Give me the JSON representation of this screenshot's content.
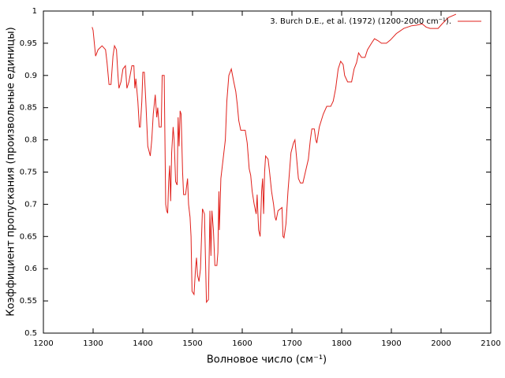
{
  "chart_data": {
    "type": "line",
    "xlabel": "Волновое число (см⁻¹)",
    "ylabel": "Коэффициент пропускания (произвольные единицы)",
    "xlim": [
      1200,
      2100
    ],
    "xticks": [
      1200,
      1300,
      1400,
      1500,
      1600,
      1700,
      1800,
      1900,
      2000,
      2100
    ],
    "ylim": [
      0.5,
      1
    ],
    "yticks": [
      0.5,
      0.55,
      0.6,
      0.65,
      0.7,
      0.75,
      0.8,
      0.85,
      0.9,
      0.95,
      1
    ],
    "grid": false,
    "legend": "top-right",
    "series": [
      {
        "name": "3. Burch D.E., et al. (1972)  (1200-2000 cm⁻¹).",
        "color": "#e0201b",
        "x": [
          1298,
          1300,
          1305,
          1310,
          1318,
          1325,
          1328,
          1332,
          1336,
          1340,
          1343,
          1347,
          1350,
          1352,
          1356,
          1360,
          1365,
          1368,
          1372,
          1378,
          1382,
          1384,
          1386,
          1390,
          1393,
          1395,
          1398,
          1400,
          1403,
          1406,
          1410,
          1415,
          1418,
          1421,
          1425,
          1428,
          1430,
          1433,
          1437,
          1439,
          1443,
          1446,
          1448,
          1450,
          1452,
          1454,
          1456,
          1458,
          1461,
          1463,
          1466,
          1469,
          1471,
          1473,
          1475,
          1477,
          1480,
          1482,
          1486,
          1490,
          1492,
          1495,
          1497,
          1499,
          1503,
          1506,
          1508,
          1510,
          1513,
          1516,
          1520,
          1524,
          1528,
          1532,
          1535,
          1537,
          1539,
          1542,
          1545,
          1549,
          1551,
          1553,
          1554,
          1557,
          1563,
          1566,
          1569,
          1573,
          1578,
          1583,
          1587,
          1590,
          1593,
          1597,
          1606,
          1610,
          1614,
          1617,
          1620,
          1624,
          1628,
          1630,
          1631,
          1633,
          1636,
          1639,
          1641,
          1643,
          1645,
          1647,
          1652,
          1655,
          1659,
          1663,
          1666,
          1668,
          1672,
          1680,
          1682,
          1684,
          1688,
          1692,
          1695,
          1698,
          1703,
          1706,
          1709,
          1713,
          1717,
          1722,
          1727,
          1733,
          1737,
          1740,
          1745,
          1748,
          1750,
          1755,
          1763,
          1770,
          1778,
          1783,
          1788,
          1793,
          1798,
          1803,
          1806,
          1812,
          1820,
          1825,
          1830,
          1834,
          1840,
          1847,
          1852,
          1860,
          1866,
          1873,
          1880,
          1890,
          1898,
          1910,
          1925,
          1940,
          1950,
          1962,
          1970,
          1978,
          1994,
          2002,
          2015,
          2030
        ],
        "values": [
          0.975,
          0.97,
          0.93,
          0.94,
          0.946,
          0.94,
          0.92,
          0.886,
          0.886,
          0.93,
          0.946,
          0.94,
          0.9,
          0.88,
          0.89,
          0.91,
          0.915,
          0.88,
          0.89,
          0.915,
          0.915,
          0.88,
          0.895,
          0.86,
          0.82,
          0.82,
          0.86,
          0.905,
          0.905,
          0.86,
          0.79,
          0.775,
          0.8,
          0.84,
          0.87,
          0.835,
          0.85,
          0.82,
          0.82,
          0.9,
          0.9,
          0.7,
          0.69,
          0.686,
          0.735,
          0.76,
          0.705,
          0.78,
          0.82,
          0.8,
          0.735,
          0.73,
          0.835,
          0.79,
          0.845,
          0.84,
          0.75,
          0.715,
          0.715,
          0.74,
          0.7,
          0.68,
          0.65,
          0.565,
          0.56,
          0.6,
          0.617,
          0.59,
          0.58,
          0.6,
          0.693,
          0.685,
          0.548,
          0.552,
          0.69,
          0.62,
          0.69,
          0.66,
          0.605,
          0.605,
          0.625,
          0.72,
          0.66,
          0.74,
          0.78,
          0.8,
          0.86,
          0.9,
          0.91,
          0.89,
          0.875,
          0.855,
          0.83,
          0.815,
          0.815,
          0.795,
          0.755,
          0.745,
          0.72,
          0.7,
          0.685,
          0.715,
          0.695,
          0.66,
          0.65,
          0.72,
          0.74,
          0.685,
          0.75,
          0.775,
          0.77,
          0.75,
          0.72,
          0.7,
          0.68,
          0.675,
          0.69,
          0.695,
          0.65,
          0.648,
          0.67,
          0.72,
          0.75,
          0.78,
          0.795,
          0.8,
          0.775,
          0.74,
          0.733,
          0.733,
          0.75,
          0.77,
          0.8,
          0.817,
          0.817,
          0.8,
          0.795,
          0.82,
          0.84,
          0.852,
          0.852,
          0.86,
          0.88,
          0.91,
          0.922,
          0.917,
          0.9,
          0.89,
          0.89,
          0.91,
          0.92,
          0.935,
          0.928,
          0.928,
          0.94,
          0.95,
          0.957,
          0.954,
          0.95,
          0.95,
          0.955,
          0.965,
          0.973,
          0.977,
          0.978,
          0.98,
          0.975,
          0.973,
          0.973,
          0.98,
          0.99,
          0.995
        ]
      }
    ]
  }
}
